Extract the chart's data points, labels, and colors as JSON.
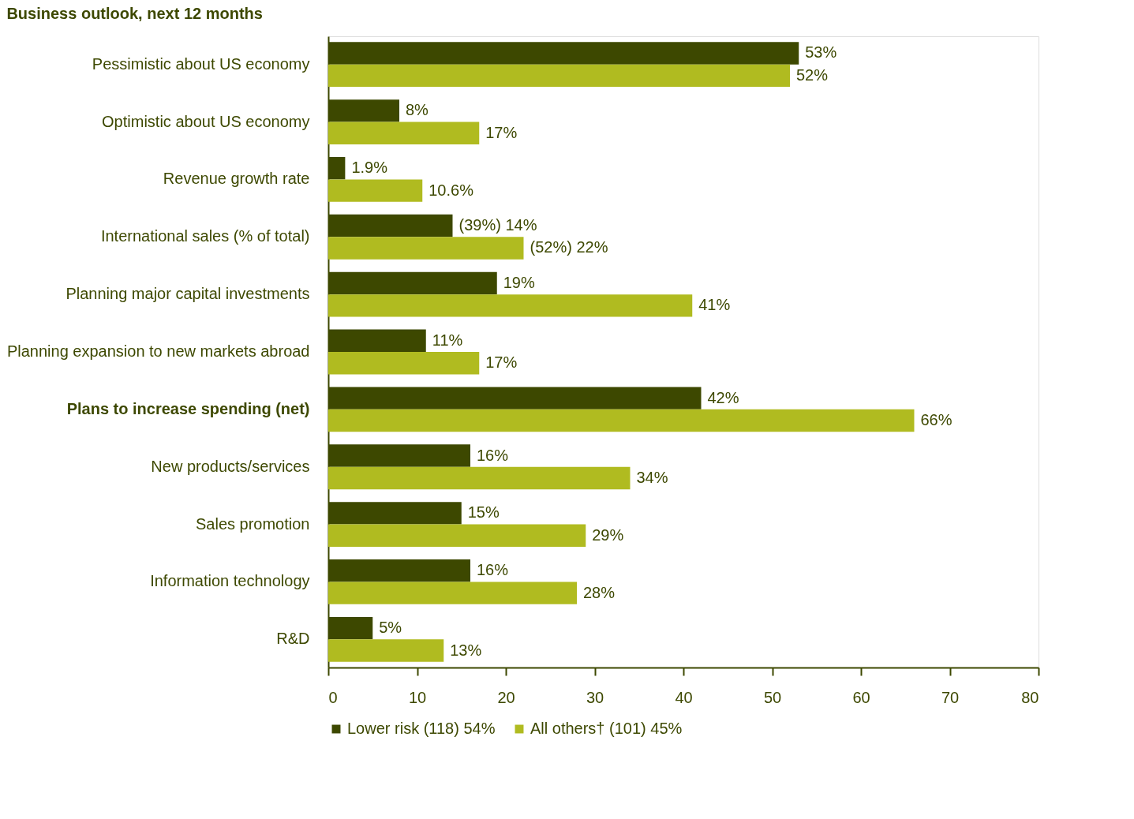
{
  "chart_data": {
    "type": "bar",
    "orientation": "horizontal",
    "title": "Business outlook, next 12 months",
    "categories": [
      "Pessimistic about US economy",
      "Optimistic about US economy",
      "Revenue growth rate",
      "International sales (% of total)",
      "Planning major capital investments",
      "Planning expansion to new markets abroad",
      "Plans to increase spending (net)",
      "New products/services",
      "Sales promotion",
      "Information technology",
      "R&D"
    ],
    "series": [
      {
        "name": "Lower risk (118) 54%",
        "color": "#3d4800",
        "values": [
          53,
          8,
          1.9,
          14,
          19,
          11,
          42,
          16,
          15,
          16,
          5
        ],
        "value_labels": [
          "53%",
          "8%",
          "1.9%",
          "(39%) 14%",
          "19%",
          "11%",
          "42%",
          "16%",
          "15%",
          "16%",
          "5%"
        ]
      },
      {
        "name": "All others† (101) 45%",
        "color": "#b0bb20",
        "values": [
          52,
          17,
          10.6,
          22,
          41,
          17,
          66,
          34,
          29,
          28,
          13
        ],
        "value_labels": [
          "52%",
          "17%",
          "10.6%",
          "(52%) 22%",
          "41%",
          "17%",
          "66%",
          "34%",
          "29%",
          "28%",
          "13%"
        ]
      }
    ],
    "xlim": [
      0,
      80
    ],
    "xticks": [
      0,
      10,
      20,
      30,
      40,
      50,
      60,
      70,
      80
    ],
    "grid": false,
    "legend": "bottom"
  }
}
